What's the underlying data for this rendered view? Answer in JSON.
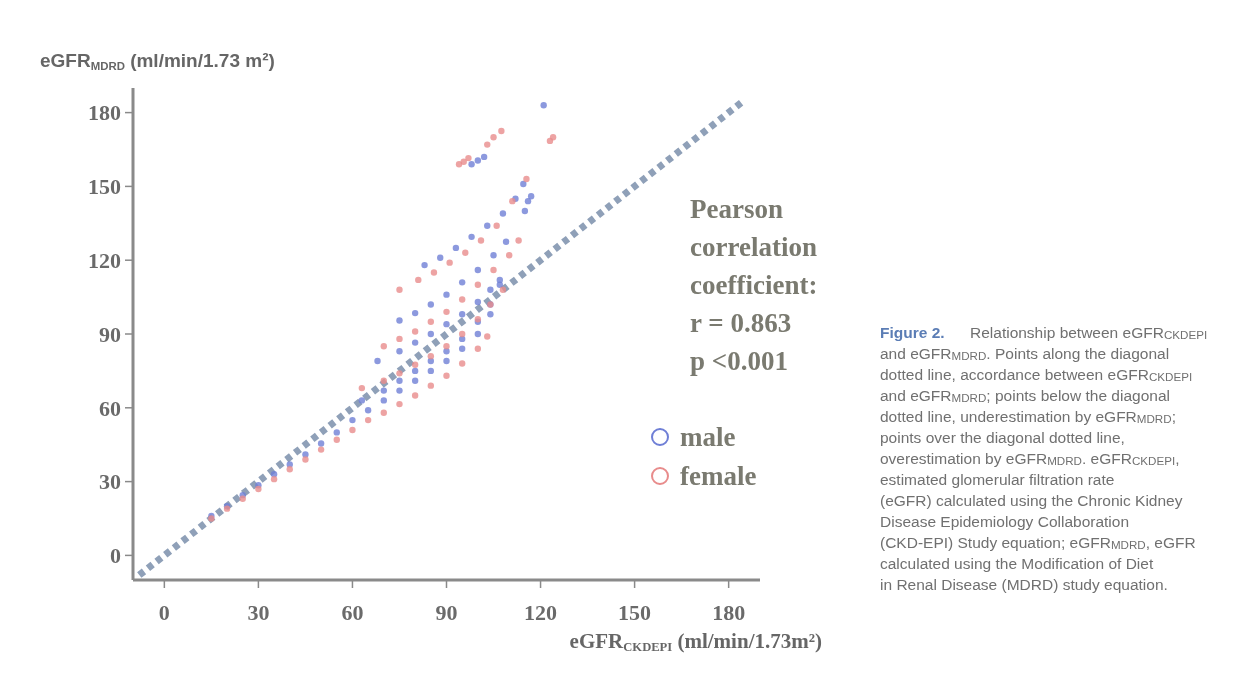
{
  "chart_data": {
    "type": "scatter",
    "xlabel": "eGFR$_{CKDEPI}$ (ml/min/1.73m²)",
    "ylabel": "eGFR$_{MDRD}$  (ml/min/1.73 m²)",
    "xlim": [
      -10,
      190
    ],
    "ylim": [
      -10,
      190
    ],
    "xticks": [
      0,
      30,
      60,
      90,
      120,
      150,
      180
    ],
    "yticks": [
      0,
      30,
      60,
      90,
      120,
      150,
      180
    ],
    "grid": false,
    "legend": "right",
    "marker": "circle",
    "annotations": [
      "Pearson\ncorrelation\ncoefficient:\nr = 0.863\np <0.001",
      "Figure 2.",
      "Relationship between eGFR$_{CKDEPI}$ and eGFR$_{MDRD}$. Points along the diagonal dotted line, accordance between eGFR$_{CKDEPI}$ and eGFR$_{MDRD}$; points below the diagonal dotted line, underestimation by eGFR$_{MDRD}$; points over the diagonal dotted line, overestimation by eGFR$_{MDRD}$. eGFR$_{CKDEPI}$, estimated glomerular filtration rate (eGFR) calculated using the Chronic Kidney Disease Epidemiology Collaboration (CKD-EPI) Study equation; eGFR$_{MDRD}$, eGFR calculated using the Modification of Diet in Renal Disease (MDRD) study equation."
    ],
    "series": [
      {
        "type": "line",
        "color": "#8fa0b8",
        "line_style": "dotted",
        "marker": "none",
        "x": [
          -8,
          185
        ],
        "values": [
          -8,
          185
        ]
      },
      {
        "name": "male",
        "color": "#6f7fd6",
        "x": [
          15,
          20,
          25,
          30,
          35,
          40,
          45,
          50,
          55,
          60,
          65,
          70,
          75,
          80,
          85,
          90,
          95,
          100,
          104,
          63,
          70,
          75,
          80,
          85,
          90,
          95,
          100,
          104,
          107,
          68,
          75,
          80,
          85,
          90,
          95,
          100,
          104,
          107,
          75,
          80,
          85,
          90,
          95,
          100,
          105,
          109,
          83,
          88,
          93,
          98,
          103,
          108,
          112,
          115,
          116,
          117,
          114.5,
          98,
          100,
          102,
          121
        ],
        "values": [
          16,
          20,
          24.5,
          28.5,
          33,
          37,
          41,
          45.5,
          50,
          55,
          59,
          63,
          67,
          71,
          75,
          79,
          84,
          90,
          98,
          63,
          67,
          71,
          75,
          79,
          83,
          88,
          95,
          102,
          110,
          79,
          83,
          86.5,
          90,
          94,
          98,
          103,
          108,
          112,
          95.5,
          98.5,
          102,
          106,
          111,
          116,
          122,
          127.5,
          118,
          121,
          125,
          129.5,
          134,
          139,
          145,
          140,
          144,
          146,
          151,
          159,
          160.5,
          162,
          183
        ]
      },
      {
        "name": "female",
        "color": "#e88c8c",
        "x": [
          15,
          20,
          25,
          30,
          35,
          40,
          45,
          50,
          55,
          60,
          65,
          70,
          75,
          80,
          85,
          90,
          95,
          100,
          103,
          63,
          70,
          75,
          80,
          85,
          90,
          95,
          100,
          104,
          108,
          70,
          75,
          80,
          85,
          90,
          95,
          100,
          105,
          110,
          113,
          81,
          86,
          91,
          96,
          101,
          106,
          111,
          75,
          94,
          95.5,
          97,
          103,
          105,
          107.5,
          115.5,
          123,
          124
        ],
        "values": [
          15,
          19,
          23,
          27,
          31,
          35,
          39,
          43,
          47,
          51,
          55,
          58,
          61.5,
          65,
          69,
          73,
          78,
          84,
          89,
          68,
          71,
          74,
          77.5,
          81,
          85,
          90,
          96,
          102,
          108,
          85,
          88,
          91,
          95,
          99,
          104,
          110,
          116,
          122,
          128,
          112,
          115,
          119,
          123,
          128,
          134,
          144,
          108,
          159,
          160,
          161.5,
          167,
          170,
          172.5,
          153,
          168.5,
          170
        ]
      }
    ]
  }
}
